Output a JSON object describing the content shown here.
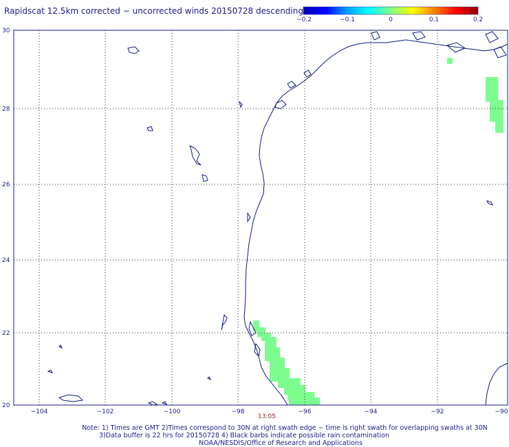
{
  "title": "Rapidscat 12.5km corrected − uncorrected winds 20150728 descending",
  "colorbar": {
    "labels": [
      "−0.2",
      "−0.1",
      "0",
      "0.1",
      "0.2"
    ],
    "stops": [
      "#0000b4",
      "#0000ff",
      "#00a0ff",
      "#00ffff",
      "#80ff80",
      "#ffff00",
      "#ff8000",
      "#ff0000",
      "#8b0000"
    ]
  },
  "axes": {
    "lon_range": [
      -104.5,
      -90
    ],
    "lat_range": [
      20,
      30
    ],
    "x_ticks": [
      "−104",
      "−102",
      "−100",
      "−98",
      "−96",
      "−94",
      "−92",
      "−90"
    ],
    "y_ticks": [
      "30",
      "28",
      "26",
      "24",
      "22",
      "20"
    ]
  },
  "swath_time": "13:05",
  "swath_color": "#7dfc8f",
  "notes": {
    "line1": "Note: 1) Times are GMT 2)Times correspond to 30N at right swath edge − time is right swath for overlapping swaths at 30N",
    "line2": "3)Data buffer is 22 hrs for 20150728 4) Black barbs indicate possible rain contamination",
    "line3": "NOAA/NESDIS/Office of Research and Applications"
  }
}
